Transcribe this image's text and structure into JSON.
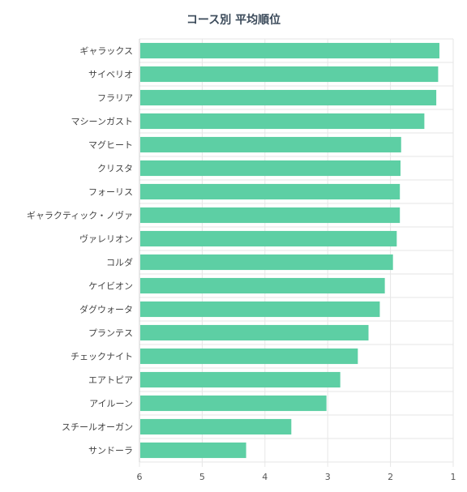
{
  "chart_data": {
    "type": "bar",
    "orientation": "horizontal",
    "title": "コース別 平均順位",
    "xlabel": "",
    "ylabel": "",
    "x_axis_reversed": true,
    "xlim": [
      6,
      1
    ],
    "x_ticks": [
      "6",
      "5",
      "4",
      "3",
      "2",
      "1"
    ],
    "grid": true,
    "bar_color": "#5dcfa4",
    "categories": [
      "ギャラックス",
      "サイベリオ",
      "フラリア",
      "マシーンガスト",
      "マグヒート",
      "クリスタ",
      "フォーリス",
      "ギャラクティック・ノヴァ",
      "ヴァレリオン",
      "コルダ",
      "ケイビオン",
      "ダグウォータ",
      "プランテス",
      "チェックナイト",
      "エアトピア",
      "アイルーン",
      "スチールオーガン",
      "サンドーラ"
    ],
    "values": [
      1.22,
      1.24,
      1.27,
      1.46,
      1.83,
      1.84,
      1.85,
      1.85,
      1.9,
      1.96,
      2.09,
      2.17,
      2.35,
      2.52,
      2.8,
      3.02,
      3.58,
      4.3
    ]
  }
}
